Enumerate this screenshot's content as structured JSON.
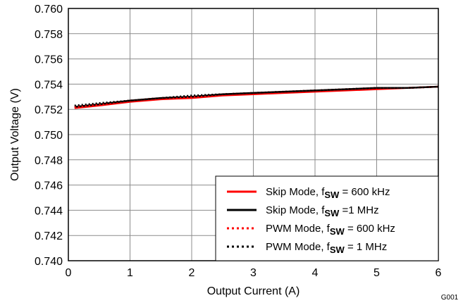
{
  "chart_data": {
    "type": "line",
    "xlabel": "Output Current (A)",
    "ylabel": "Output Voltage (V)",
    "xlim": [
      0,
      6
    ],
    "ylim": [
      0.74,
      0.76
    ],
    "x_ticks": [
      "0",
      "1",
      "2",
      "3",
      "4",
      "5",
      "6"
    ],
    "y_ticks": [
      "0.740",
      "0.742",
      "0.744",
      "0.746",
      "0.748",
      "0.750",
      "0.752",
      "0.754",
      "0.756",
      "0.758",
      "0.760"
    ],
    "grid": true,
    "legend_position": "bottom-right",
    "figure_id": "G001",
    "series": [
      {
        "label_prefix": "Skip Mode, f",
        "label_sub": "SW",
        "label_suffix": " = 600 kHz",
        "color": "#ff0000",
        "style": "solid",
        "x": [
          0.1,
          0.5,
          1,
          1.5,
          2,
          2.5,
          3,
          3.5,
          4,
          4.5,
          5,
          5.5,
          6
        ],
        "y": [
          0.7521,
          0.7523,
          0.7526,
          0.7528,
          0.7529,
          0.7531,
          0.7532,
          0.7533,
          0.7534,
          0.7535,
          0.7536,
          0.7537,
          0.7538
        ]
      },
      {
        "label_prefix": "Skip Mode, f",
        "label_sub": "SW",
        "label_suffix": " =1 MHz",
        "color": "#000000",
        "style": "solid",
        "x": [
          0.1,
          0.5,
          1,
          1.5,
          2,
          2.5,
          3,
          3.5,
          4,
          4.5,
          5,
          5.5,
          6
        ],
        "y": [
          0.7522,
          0.7524,
          0.7527,
          0.7529,
          0.753,
          0.7532,
          0.7533,
          0.7534,
          0.7535,
          0.7536,
          0.7537,
          0.7537,
          0.7538
        ]
      },
      {
        "label_prefix": "PWM Mode, f",
        "label_sub": "SW",
        "label_suffix": " = 600 kHz",
        "color": "#ff0000",
        "style": "dotted",
        "x": [
          0.1,
          0.5,
          1,
          1.5,
          2,
          2.5,
          3,
          3.5,
          4,
          4.5,
          5,
          5.5,
          6
        ],
        "y": [
          0.7522,
          0.7524,
          0.7527,
          0.7529,
          0.753,
          0.7532,
          0.7533,
          0.7534,
          0.7535,
          0.7536,
          0.7537,
          0.7537,
          0.7538
        ]
      },
      {
        "label_prefix": "PWM Mode, f",
        "label_sub": "SW",
        "label_suffix": " = 1 MHz",
        "color": "#000000",
        "style": "dotted",
        "x": [
          0.1,
          0.5,
          1,
          1.5,
          2,
          2.5,
          3,
          3.5,
          4,
          4.5,
          5,
          5.5,
          6
        ],
        "y": [
          0.7523,
          0.7525,
          0.7527,
          0.7529,
          0.7531,
          0.7532,
          0.7533,
          0.7534,
          0.7535,
          0.7536,
          0.7537,
          0.7537,
          0.7538
        ]
      }
    ]
  }
}
